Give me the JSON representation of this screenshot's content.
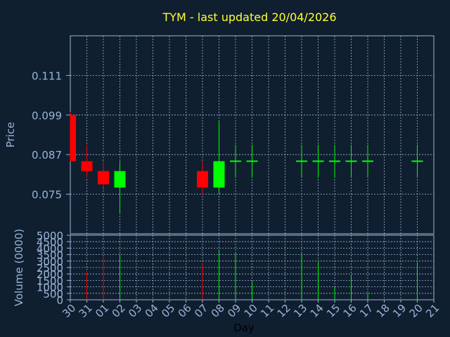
{
  "colors": {
    "background": "#0f1f30",
    "title": "#ffff33",
    "axis_text": "#9bb4d6",
    "frame": "#9bb4d6",
    "grid": "#9bb4d6",
    "up": "#00ff00",
    "down": "#ff0000",
    "xlabel": "#000000"
  },
  "chart_data": [
    {
      "type": "candlestick",
      "title": "TYM - last updated 20/04/2026",
      "ylabel": "Price",
      "xlabel": "Day",
      "ylim": [
        0.063,
        0.123
      ],
      "yticks": [
        "0.075",
        "0.087",
        "0.099",
        "0.111"
      ],
      "ytick_values": [
        0.075,
        0.087,
        0.099,
        0.111
      ],
      "categories": [
        "30",
        "31",
        "01",
        "02",
        "03",
        "04",
        "05",
        "06",
        "07",
        "08",
        "09",
        "10",
        "11",
        "12",
        "13",
        "14",
        "15",
        "16",
        "17",
        "18",
        "19",
        "20",
        "21"
      ],
      "candles": [
        {
          "day": "30",
          "open": 0.099,
          "close": 0.085,
          "high": 0.1,
          "low": 0.085
        },
        {
          "day": "31",
          "open": 0.085,
          "close": 0.082,
          "high": 0.09,
          "low": 0.08
        },
        {
          "day": "01",
          "open": 0.082,
          "close": 0.078,
          "high": 0.085,
          "low": 0.077
        },
        {
          "day": "02",
          "open": 0.077,
          "close": 0.082,
          "high": 0.085,
          "low": 0.069
        },
        {
          "day": "07",
          "open": 0.082,
          "close": 0.077,
          "high": 0.085,
          "low": 0.075
        },
        {
          "day": "08",
          "open": 0.077,
          "close": 0.085,
          "high": 0.097,
          "low": 0.075
        },
        {
          "day": "09",
          "open": 0.085,
          "close": 0.085,
          "high": 0.09,
          "low": 0.08
        },
        {
          "day": "10",
          "open": 0.085,
          "close": 0.085,
          "high": 0.09,
          "low": 0.08
        },
        {
          "day": "13",
          "open": 0.085,
          "close": 0.085,
          "high": 0.09,
          "low": 0.08
        },
        {
          "day": "14",
          "open": 0.085,
          "close": 0.085,
          "high": 0.09,
          "low": 0.08
        },
        {
          "day": "15",
          "open": 0.085,
          "close": 0.085,
          "high": 0.09,
          "low": 0.08
        },
        {
          "day": "16",
          "open": 0.085,
          "close": 0.085,
          "high": 0.09,
          "low": 0.08
        },
        {
          "day": "17",
          "open": 0.085,
          "close": 0.085,
          "high": 0.09,
          "low": 0.08
        },
        {
          "day": "20",
          "open": 0.085,
          "close": 0.085,
          "high": 0.09,
          "low": 0.08
        }
      ]
    },
    {
      "type": "bar",
      "ylabel": "Volume (0000)",
      "xlabel": "Day",
      "ylim": [
        0,
        5000
      ],
      "yticks": [
        "0",
        "500",
        "1000",
        "1500",
        "2000",
        "2500",
        "3000",
        "3500",
        "4000",
        "4500",
        "5000"
      ],
      "ytick_values": [
        0,
        500,
        1000,
        1500,
        2000,
        2500,
        3000,
        3500,
        4000,
        4500,
        5000
      ],
      "categories": [
        "30",
        "31",
        "01",
        "02",
        "03",
        "04",
        "05",
        "06",
        "07",
        "08",
        "09",
        "10",
        "11",
        "12",
        "13",
        "14",
        "15",
        "16",
        "17",
        "18",
        "19",
        "20",
        "21"
      ],
      "bars": [
        {
          "day": "31",
          "value": 2200,
          "dir": "down"
        },
        {
          "day": "01",
          "value": 3300,
          "dir": "down"
        },
        {
          "day": "02",
          "value": 3500,
          "dir": "up"
        },
        {
          "day": "07",
          "value": 2800,
          "dir": "down"
        },
        {
          "day": "08",
          "value": 3800,
          "dir": "up"
        },
        {
          "day": "09",
          "value": 3700,
          "dir": "up"
        },
        {
          "day": "10",
          "value": 1400,
          "dir": "up"
        },
        {
          "day": "13",
          "value": 3600,
          "dir": "up"
        },
        {
          "day": "14",
          "value": 2900,
          "dir": "up"
        },
        {
          "day": "15",
          "value": 1000,
          "dir": "up"
        },
        {
          "day": "16",
          "value": 1900,
          "dir": "up"
        },
        {
          "day": "17",
          "value": 500,
          "dir": "up"
        },
        {
          "day": "20",
          "value": 2900,
          "dir": "up"
        }
      ]
    }
  ]
}
